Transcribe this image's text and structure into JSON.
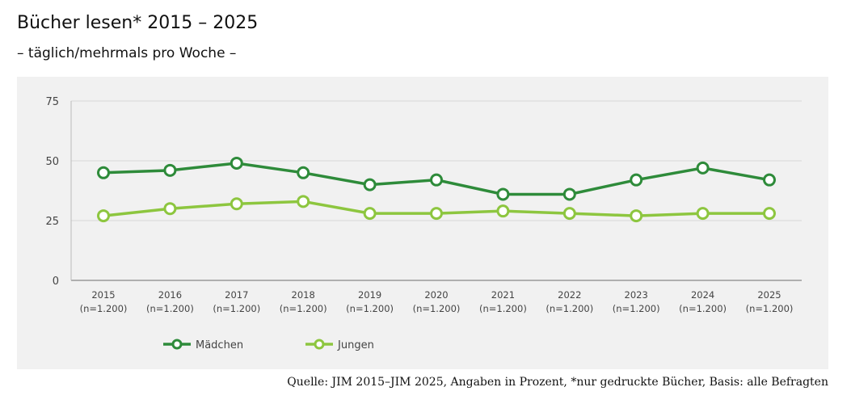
{
  "title": "Bücher lesen* 2015 – 2025",
  "subtitle": "– täglich/mehrmals pro Woche –",
  "source": "Quelle: JIM 2015–JIM 2025, Angaben in Prozent, *nur gedruckte Bücher, Basis: alle Befragten",
  "chart_data": {
    "type": "line",
    "categories": [
      "2015",
      "2016",
      "2017",
      "2018",
      "2019",
      "2020",
      "2021",
      "2022",
      "2023",
      "2024",
      "2025"
    ],
    "category_sublabels": [
      "(n=1.200)",
      "(n=1.200)",
      "(n=1.200)",
      "(n=1.200)",
      "(n=1.200)",
      "(n=1.200)",
      "(n=1.200)",
      "(n=1.200)",
      "(n=1.200)",
      "(n=1.200)",
      "(n=1.200)"
    ],
    "yticks": [
      0,
      25,
      50,
      75
    ],
    "ylim": [
      0,
      75
    ],
    "grid": true,
    "legend_position": "bottom-left",
    "series": [
      {
        "name": "Mädchen",
        "color": "#2e8b3a",
        "values": [
          45,
          46,
          49,
          45,
          40,
          42,
          36,
          36,
          42,
          47,
          42
        ]
      },
      {
        "name": "Jungen",
        "color": "#8dc63f",
        "values": [
          27,
          30,
          32,
          33,
          28,
          28,
          29,
          28,
          27,
          28,
          28
        ]
      }
    ]
  }
}
